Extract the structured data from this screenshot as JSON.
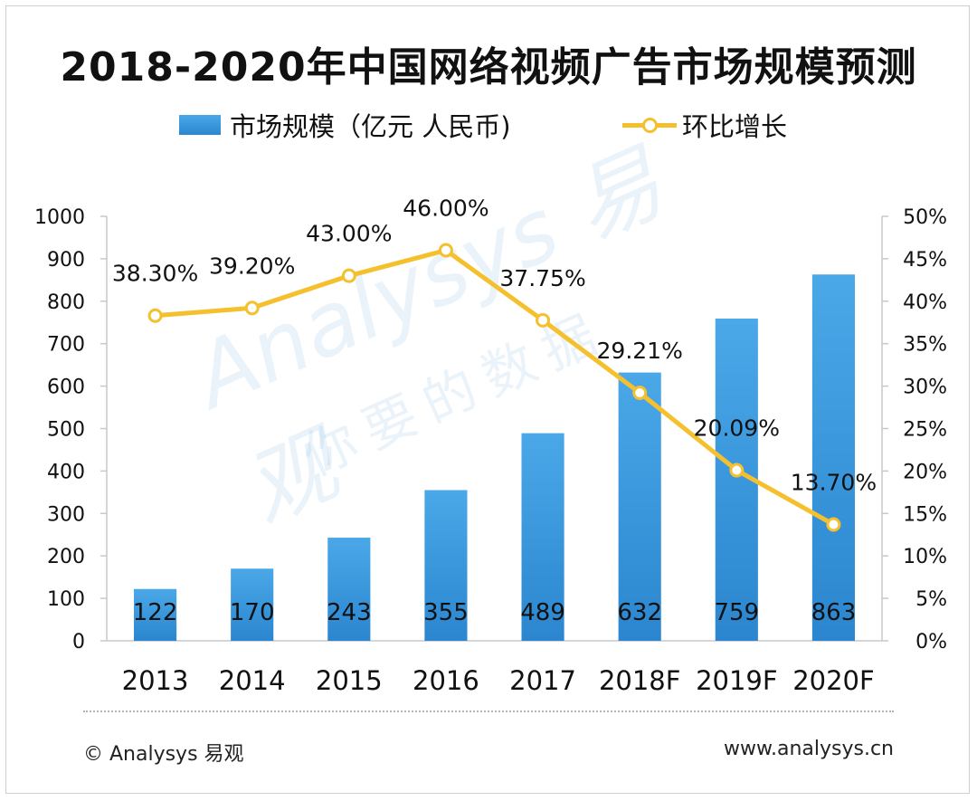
{
  "chart_data": {
    "type": "bar+line",
    "title": "2018-2020年中国网络视频广告市场规模预测",
    "categories": [
      "2013",
      "2014",
      "2015",
      "2016",
      "2017",
      "2018F",
      "2019F",
      "2020F"
    ],
    "series": [
      {
        "name": "市场规模（亿元 人民币)",
        "type": "bar",
        "axis": "left",
        "values": [
          122,
          170,
          243,
          355,
          489,
          632,
          759,
          863
        ],
        "labels": [
          "122",
          "170",
          "243",
          "355",
          "489",
          "632",
          "759",
          "863"
        ]
      },
      {
        "name": "环比增长",
        "type": "line",
        "axis": "right",
        "values": [
          38.3,
          39.2,
          43.0,
          46.0,
          37.75,
          29.21,
          20.09,
          13.7
        ],
        "labels": [
          "38.30%",
          "39.20%",
          "43.00%",
          "46.00%",
          "37.75%",
          "29.21%",
          "20.09%",
          "13.70%"
        ]
      }
    ],
    "y_left": {
      "min": 0,
      "max": 1000,
      "ticks": [
        "0",
        "100",
        "200",
        "300",
        "400",
        "500",
        "600",
        "700",
        "800",
        "900",
        "1000"
      ]
    },
    "y_right": {
      "min": 0,
      "max": 50,
      "ticks": [
        "0%",
        "5%",
        "10%",
        "15%",
        "20%",
        "25%",
        "30%",
        "35%",
        "40%",
        "45%",
        "50%"
      ]
    },
    "legend_position": "top",
    "grid": false
  },
  "colors": {
    "bar_top": "#4aa8e8",
    "bar_bottom": "#2b86cf",
    "line": "#f4c02e",
    "axis": "#c8c8c8"
  },
  "legend": {
    "bar_label": "市场规模（亿元 人民币)",
    "line_label": "环比增长"
  },
  "watermark": {
    "brand": "Analysys 易观",
    "slogan": "你要的数据"
  },
  "footer": {
    "copyright": "© Analysys 易观",
    "website": "www.analysys.cn"
  }
}
